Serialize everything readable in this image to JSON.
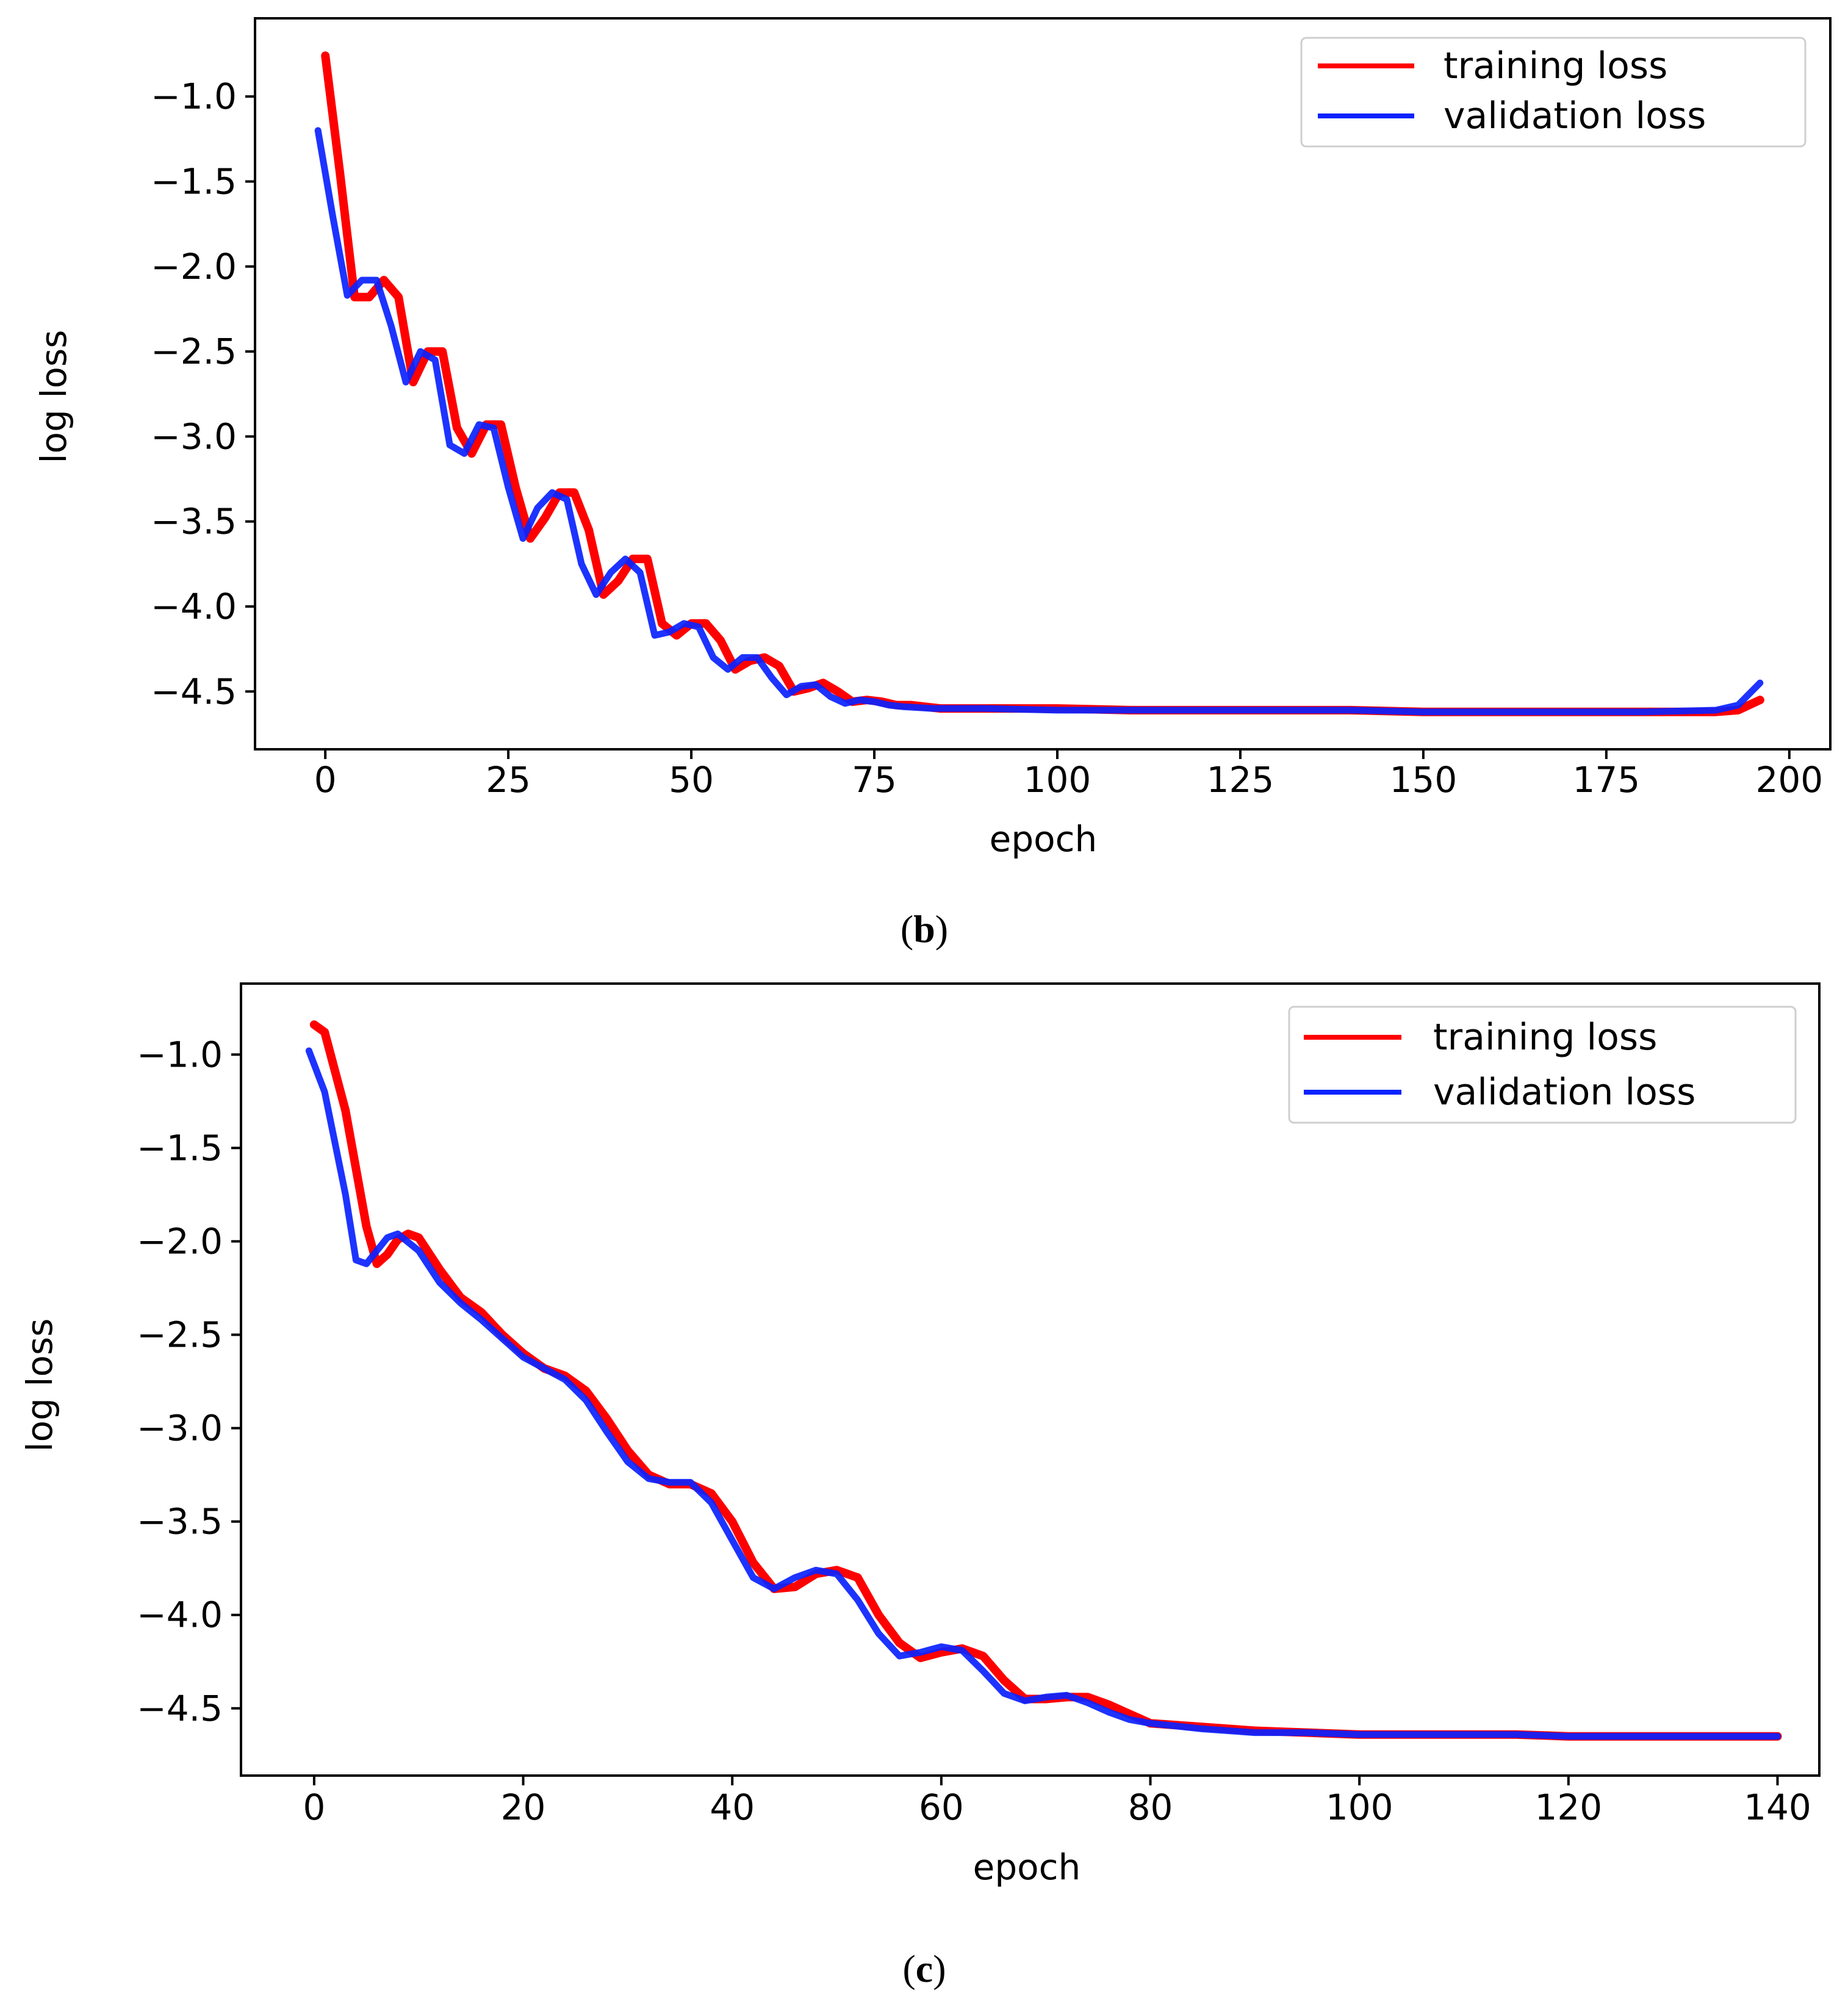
{
  "colors": {
    "training": "#ff0000",
    "validation": "#0a22ff",
    "frame": "#000000"
  },
  "chart_data": [
    {
      "id": "b",
      "type": "line",
      "caption_letter": "b",
      "title": "",
      "xlabel": "epoch",
      "ylabel": "log loss",
      "xlim": [
        -9.6,
        205.6
      ],
      "ylim": [
        -4.84,
        -0.54
      ],
      "xticks": [
        0,
        25,
        50,
        75,
        100,
        125,
        150,
        175,
        200
      ],
      "yticks": [
        -1.0,
        -1.5,
        -2.0,
        -2.5,
        -3.0,
        -3.5,
        -4.0,
        -4.5
      ],
      "xtick_labels": [
        "0",
        "25",
        "50",
        "75",
        "100",
        "125",
        "150",
        "175",
        "200"
      ],
      "ytick_labels": [
        "−1.0",
        "−1.5",
        "−2.0",
        "−2.5",
        "−3.0",
        "−3.5",
        "−4.0",
        "−4.5"
      ],
      "legend": {
        "position": "top-right",
        "entries": [
          "training loss",
          "validation loss"
        ]
      },
      "series": [
        {
          "name": "training loss",
          "color_key": "training",
          "x": [
            0,
            2,
            4,
            6,
            8,
            10,
            12,
            14,
            16,
            18,
            20,
            22,
            24,
            26,
            28,
            30,
            32,
            34,
            36,
            38,
            40,
            42,
            44,
            46,
            48,
            50,
            52,
            54,
            56,
            58,
            60,
            62,
            64,
            66,
            68,
            70,
            72,
            74,
            76,
            78,
            80,
            84,
            90,
            100,
            110,
            120,
            130,
            140,
            150,
            160,
            170,
            180,
            190,
            193,
            196
          ],
          "y": [
            -0.76,
            -1.45,
            -2.18,
            -2.18,
            -2.08,
            -2.18,
            -2.68,
            -2.5,
            -2.5,
            -2.95,
            -3.1,
            -2.93,
            -2.93,
            -3.3,
            -3.6,
            -3.48,
            -3.33,
            -3.33,
            -3.55,
            -3.93,
            -3.85,
            -3.72,
            -3.72,
            -4.1,
            -4.17,
            -4.1,
            -4.1,
            -4.2,
            -4.37,
            -4.32,
            -4.3,
            -4.35,
            -4.5,
            -4.48,
            -4.45,
            -4.5,
            -4.56,
            -4.55,
            -4.56,
            -4.58,
            -4.58,
            -4.6,
            -4.6,
            -4.6,
            -4.61,
            -4.61,
            -4.61,
            -4.61,
            -4.62,
            -4.62,
            -4.62,
            -4.62,
            -4.62,
            -4.61,
            -4.55
          ]
        },
        {
          "name": "validation loss",
          "color_key": "validation",
          "x": [
            -1,
            1,
            3,
            5,
            7,
            9,
            11,
            13,
            15,
            17,
            19,
            21,
            23,
            25,
            27,
            29,
            31,
            33,
            35,
            37,
            39,
            41,
            43,
            45,
            47,
            49,
            51,
            53,
            55,
            57,
            59,
            61,
            63,
            65,
            67,
            69,
            71,
            73,
            75,
            77,
            79,
            83,
            90,
            100,
            110,
            120,
            130,
            140,
            150,
            160,
            170,
            180,
            190,
            193,
            196
          ],
          "y": [
            -1.2,
            -1.7,
            -2.17,
            -2.08,
            -2.08,
            -2.35,
            -2.68,
            -2.5,
            -2.55,
            -3.05,
            -3.1,
            -2.93,
            -2.95,
            -3.3,
            -3.6,
            -3.42,
            -3.33,
            -3.37,
            -3.75,
            -3.93,
            -3.8,
            -3.72,
            -3.8,
            -4.17,
            -4.15,
            -4.1,
            -4.12,
            -4.3,
            -4.37,
            -4.3,
            -4.3,
            -4.42,
            -4.52,
            -4.47,
            -4.46,
            -4.53,
            -4.57,
            -4.55,
            -4.56,
            -4.58,
            -4.59,
            -4.6,
            -4.6,
            -4.61,
            -4.61,
            -4.61,
            -4.61,
            -4.61,
            -4.62,
            -4.62,
            -4.62,
            -4.62,
            -4.61,
            -4.58,
            -4.45
          ]
        }
      ]
    },
    {
      "id": "c",
      "type": "line",
      "caption_letter": "c",
      "title": "",
      "xlabel": "epoch",
      "ylabel": "log loss",
      "xlim": [
        -7,
        144
      ],
      "ylim": [
        -4.86,
        -0.62
      ],
      "xticks": [
        0,
        20,
        40,
        60,
        80,
        100,
        120,
        140
      ],
      "yticks": [
        -1.0,
        -1.5,
        -2.0,
        -2.5,
        -3.0,
        -3.5,
        -4.0,
        -4.5
      ],
      "xtick_labels": [
        "0",
        "20",
        "40",
        "60",
        "80",
        "100",
        "120",
        "140"
      ],
      "ytick_labels": [
        "−1.0",
        "−1.5",
        "−2.0",
        "−2.5",
        "−3.0",
        "−3.5",
        "−4.0",
        "−4.5"
      ],
      "legend": {
        "position": "top-right",
        "entries": [
          "training loss",
          "validation loss"
        ]
      },
      "series": [
        {
          "name": "training loss",
          "color_key": "training",
          "x": [
            0,
            1,
            3,
            5,
            6,
            7,
            8,
            9,
            10,
            12,
            14,
            16,
            18,
            20,
            22,
            24,
            26,
            28,
            30,
            32,
            34,
            36,
            38,
            40,
            42,
            44,
            46,
            48,
            50,
            52,
            54,
            56,
            58,
            60,
            62,
            64,
            66,
            68,
            70,
            72,
            74,
            76,
            78,
            80,
            85,
            90,
            95,
            100,
            105,
            110,
            115,
            120,
            125,
            130,
            135,
            140
          ],
          "y": [
            -0.84,
            -0.88,
            -1.3,
            -1.92,
            -2.12,
            -2.07,
            -1.99,
            -1.96,
            -1.98,
            -2.15,
            -2.3,
            -2.38,
            -2.5,
            -2.6,
            -2.68,
            -2.72,
            -2.8,
            -2.95,
            -3.12,
            -3.25,
            -3.3,
            -3.3,
            -3.35,
            -3.5,
            -3.72,
            -3.86,
            -3.85,
            -3.78,
            -3.76,
            -3.8,
            -4.0,
            -4.15,
            -4.23,
            -4.2,
            -4.18,
            -4.22,
            -4.35,
            -4.45,
            -4.45,
            -4.44,
            -4.44,
            -4.48,
            -4.53,
            -4.58,
            -4.6,
            -4.62,
            -4.63,
            -4.64,
            -4.64,
            -4.64,
            -4.64,
            -4.65,
            -4.65,
            -4.65,
            -4.65,
            -4.65
          ]
        },
        {
          "name": "validation loss",
          "color_key": "validation",
          "x": [
            -0.5,
            1,
            3,
            4,
            5,
            6,
            7,
            8,
            10,
            12,
            14,
            16,
            18,
            20,
            22,
            24,
            26,
            28,
            30,
            32,
            34,
            36,
            38,
            40,
            42,
            44,
            46,
            48,
            50,
            52,
            54,
            56,
            58,
            60,
            62,
            64,
            66,
            68,
            70,
            72,
            74,
            76,
            78,
            80,
            85,
            90,
            95,
            100,
            105,
            110,
            115,
            120,
            125,
            130,
            135,
            140
          ],
          "y": [
            -0.98,
            -1.2,
            -1.75,
            -2.1,
            -2.12,
            -2.05,
            -1.98,
            -1.96,
            -2.05,
            -2.22,
            -2.33,
            -2.42,
            -2.52,
            -2.62,
            -2.68,
            -2.74,
            -2.85,
            -3.02,
            -3.18,
            -3.27,
            -3.29,
            -3.29,
            -3.4,
            -3.6,
            -3.8,
            -3.86,
            -3.8,
            -3.76,
            -3.78,
            -3.92,
            -4.1,
            -4.22,
            -4.2,
            -4.17,
            -4.19,
            -4.3,
            -4.42,
            -4.46,
            -4.44,
            -4.43,
            -4.47,
            -4.52,
            -4.56,
            -4.58,
            -4.61,
            -4.63,
            -4.63,
            -4.64,
            -4.64,
            -4.64,
            -4.64,
            -4.65,
            -4.65,
            -4.65,
            -4.65,
            -4.65
          ]
        }
      ]
    }
  ]
}
